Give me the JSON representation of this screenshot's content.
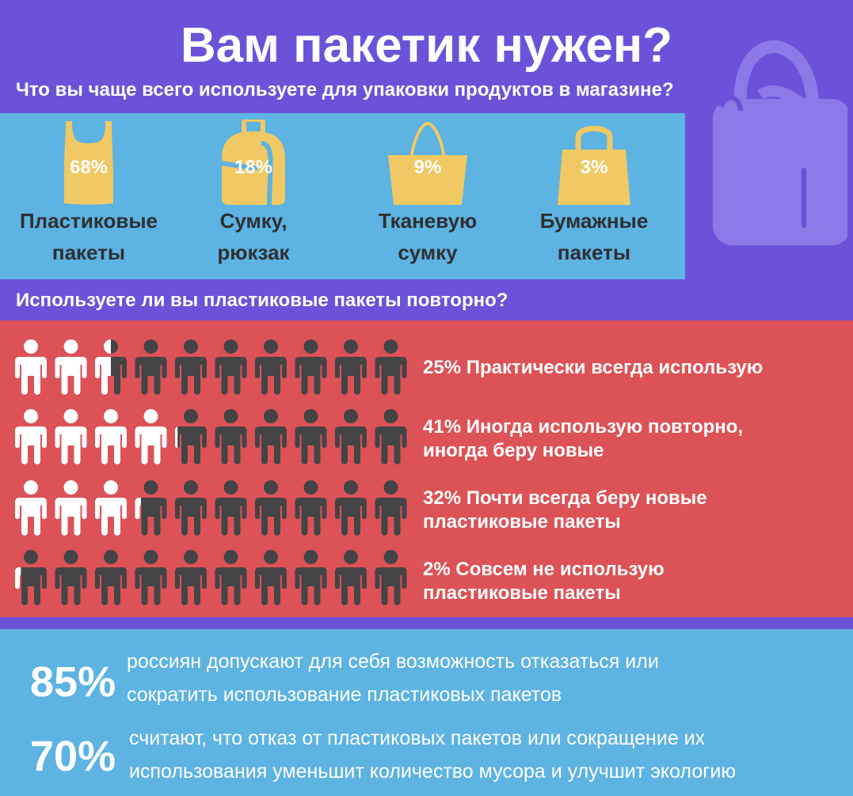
{
  "title": "Вам пакетик нужен?",
  "question1": "Что вы чаще всего используете для упаковки продуктов в магазине?",
  "question2": "Используете ли вы пластиковые пакеты повторно?",
  "packaging": [
    {
      "percent": "68%",
      "line1": "Пластиковые",
      "line2": "пакеты",
      "icon": "plastic-bag-icon"
    },
    {
      "percent": "18%",
      "line1": "Сумку,",
      "line2": "рюкзак",
      "icon": "backpack-icon"
    },
    {
      "percent": "9%",
      "line1": "Тканевую",
      "line2": "сумку",
      "icon": "tote-bag-icon"
    },
    {
      "percent": "3%",
      "line1": "Бумажные",
      "line2": "пакеты",
      "icon": "paper-bag-icon"
    }
  ],
  "reuse": [
    {
      "value": 25,
      "line1": "25% Практически всегда использую",
      "line2": ""
    },
    {
      "value": 41,
      "line1": "41% Иногда использую повторно,",
      "line2": "иногда беру новые"
    },
    {
      "value": 32,
      "line1": "32% Почти всегда беру новые",
      "line2": "пластиковые пакеты"
    },
    {
      "value": 2,
      "line1": "2% Совсем не использую",
      "line2": "пластиковые пакеты"
    }
  ],
  "stats": [
    {
      "number": "85%",
      "line1": "россиян допускают для себя возможность отказаться или",
      "line2": "сократить использование пластиковых пакетов"
    },
    {
      "number": "70%",
      "line1": "считают, что отказ от пластиковых пакетов или сокращение их",
      "line2": "использования уменьшит количество мусора и улучшит экологию"
    }
  ],
  "colors": {
    "purple": "#6b52d9",
    "blue": "#5db3e2",
    "red": "#dc5256",
    "yellow": "#f0c964",
    "dark": "#444446",
    "white": "#ffffff"
  },
  "chart_data": [
    {
      "type": "bar",
      "title": "Что вы чаще всего используете для упаковки продуктов в магазине?",
      "categories": [
        "Пластиковые пакеты",
        "Сумку, рюкзак",
        "Тканевую сумку",
        "Бумажные пакеты"
      ],
      "values": [
        68,
        18,
        9,
        3
      ],
      "unit": "%"
    },
    {
      "type": "bar",
      "title": "Используете ли вы пластиковые пакеты повторно?",
      "categories": [
        "Практически всегда использую",
        "Иногда использую повторно, иногда беру новые",
        "Почти всегда беру новые пластиковые пакеты",
        "Совсем не использую пластиковые пакеты"
      ],
      "values": [
        25,
        41,
        32,
        2
      ],
      "unit": "%",
      "icons_per_row": 10
    }
  ]
}
